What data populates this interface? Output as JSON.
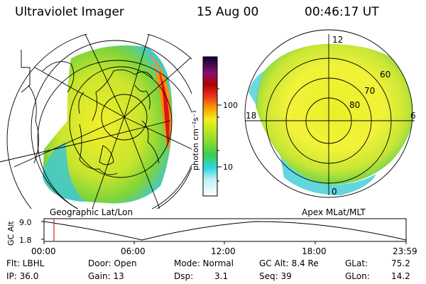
{
  "header": {
    "instrument": "Ultraviolet Imager",
    "date": "15 Aug 00",
    "time": "00:46:17 UT"
  },
  "colorbar": {
    "unit_label": "photon cm⁻²s⁻¹",
    "ticks": [
      "100",
      "10"
    ],
    "scale": "log",
    "colors": [
      "#ffffff",
      "#2fd6e2",
      "#3ccd4d",
      "#9ee02a",
      "#f0f020",
      "#f9a000",
      "#e83020",
      "#b00000",
      "#6a0080",
      "#0a0030"
    ]
  },
  "left_map": {
    "caption": "Geographic Lat/Lon"
  },
  "right_map": {
    "caption": "Apex MLat/MLT",
    "mlt_labels": [
      "12",
      "18",
      "6",
      "0"
    ],
    "mlat_labels": [
      "60",
      "70",
      "80"
    ]
  },
  "altitude_plot": {
    "ylabel": "GC Alt",
    "yticks": [
      "9.0",
      "1.8"
    ],
    "xticks": [
      "00:00",
      "06:00",
      "12:00",
      "18:00",
      "23:59"
    ],
    "marker_color": "#e02020"
  },
  "status": {
    "flt": "Flt: LBHL",
    "ip": "IP: 36.0",
    "door": "Door: Open",
    "gain": "Gain: 13",
    "mode": "Mode: Normal",
    "dsp_label": "Dsp:",
    "dsp_value": "3.1",
    "gcalt": "GC Alt: 8.4 Re",
    "seq": "Seq: 39",
    "glat_label": "GLat:",
    "glat_value": "75.2",
    "glon_label": "GLon:",
    "glon_value": "14.2"
  }
}
